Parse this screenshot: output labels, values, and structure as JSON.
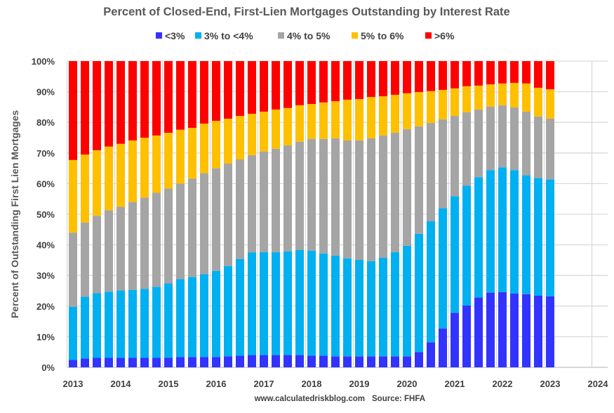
{
  "chart_data": {
    "type": "bar",
    "stacked": true,
    "title": "Percent of Closed-End, First-Lien Mortgages Outstanding by Interest Rate",
    "xlabel": "",
    "ylabel": "Percent of Outstanding First Lien Mortgages",
    "ylim": [
      0,
      100
    ],
    "yticks": [
      "0%",
      "10%",
      "20%",
      "30%",
      "40%",
      "50%",
      "60%",
      "70%",
      "80%",
      "90%",
      "100%"
    ],
    "xticks": [
      "2013",
      "2014",
      "2015",
      "2016",
      "2017",
      "2018",
      "2019",
      "2020",
      "2021",
      "2022",
      "2023",
      "2024"
    ],
    "grid": true,
    "legend": "top",
    "categories": [
      "2013-Q1",
      "2013-Q2",
      "2013-Q3",
      "2013-Q4",
      "2014-Q1",
      "2014-Q2",
      "2014-Q3",
      "2014-Q4",
      "2015-Q1",
      "2015-Q2",
      "2015-Q3",
      "2015-Q4",
      "2016-Q1",
      "2016-Q2",
      "2016-Q3",
      "2016-Q4",
      "2017-Q1",
      "2017-Q2",
      "2017-Q3",
      "2017-Q4",
      "2018-Q1",
      "2018-Q2",
      "2018-Q3",
      "2018-Q4",
      "2019-Q1",
      "2019-Q2",
      "2019-Q3",
      "2019-Q4",
      "2020-Q1",
      "2020-Q2",
      "2020-Q3",
      "2020-Q4",
      "2021-Q1",
      "2021-Q2",
      "2021-Q3",
      "2021-Q4",
      "2022-Q1",
      "2022-Q2",
      "2022-Q3",
      "2022-Q4",
      "2023-Q1"
    ],
    "series": [
      {
        "name": "<3%",
        "color": "#3333FF",
        "values": [
          2.4,
          2.9,
          3.1,
          3.1,
          3.1,
          3.1,
          3.1,
          3.1,
          3.1,
          3.4,
          3.4,
          3.4,
          3.4,
          3.6,
          3.8,
          4.0,
          4.0,
          4.0,
          4.0,
          4.0,
          3.8,
          3.8,
          3.6,
          3.6,
          3.6,
          3.6,
          3.6,
          3.6,
          3.6,
          5.0,
          8.2,
          12.7,
          17.8,
          20.2,
          22.8,
          24.4,
          24.6,
          24.1,
          23.9,
          23.4,
          23.2
        ]
      },
      {
        "name": "3% to <4%",
        "color": "#00B0F0",
        "values": [
          17.4,
          20.2,
          21.1,
          21.6,
          22.0,
          22.2,
          22.5,
          23.2,
          24.3,
          25.4,
          26.1,
          27.0,
          28.1,
          29.5,
          31.6,
          33.5,
          33.6,
          33.6,
          33.9,
          34.3,
          34.3,
          33.4,
          32.9,
          32.0,
          31.5,
          31.1,
          32.2,
          34.0,
          36.1,
          38.6,
          39.5,
          39.3,
          38.1,
          39.1,
          39.3,
          40.0,
          40.7,
          40.3,
          38.8,
          38.4,
          38.2
        ]
      },
      {
        "name": "4% to 5%",
        "color": "#A5A5A5",
        "values": [
          24.2,
          24.2,
          25.3,
          26.6,
          27.3,
          28.7,
          29.8,
          30.7,
          31.0,
          31.2,
          32.1,
          33.0,
          33.5,
          33.5,
          32.5,
          31.8,
          32.9,
          33.8,
          34.6,
          35.4,
          36.5,
          37.4,
          38.3,
          38.5,
          39.0,
          40.1,
          39.9,
          39.0,
          38.1,
          35.1,
          32.1,
          29.0,
          26.2,
          24.0,
          22.1,
          20.7,
          20.3,
          20.5,
          20.8,
          20.1,
          19.8
        ]
      },
      {
        "name": "5% to 6%",
        "color": "#FFC000",
        "values": [
          23.7,
          22.2,
          21.4,
          20.8,
          20.6,
          20.1,
          19.6,
          18.7,
          18.2,
          17.6,
          16.6,
          16.2,
          15.5,
          14.6,
          14.2,
          13.5,
          13.0,
          12.8,
          12.2,
          11.9,
          11.4,
          11.9,
          12.1,
          13.3,
          13.5,
          13.5,
          12.8,
          12.4,
          11.7,
          11.2,
          10.4,
          9.6,
          9.0,
          8.5,
          7.8,
          7.3,
          7.1,
          8.0,
          9.2,
          9.4,
          9.6
        ]
      },
      {
        "name": ">6%",
        "color": "#FF0000",
        "values": [
          32.3,
          30.5,
          29.1,
          27.9,
          27.0,
          25.9,
          25.0,
          24.3,
          23.4,
          22.4,
          21.8,
          20.4,
          19.5,
          18.8,
          17.9,
          17.2,
          16.5,
          15.8,
          15.3,
          14.4,
          14.0,
          13.5,
          13.1,
          12.6,
          12.4,
          11.7,
          11.5,
          11.0,
          10.5,
          10.1,
          9.8,
          9.4,
          8.9,
          8.2,
          8.0,
          7.6,
          7.3,
          7.1,
          7.3,
          8.7,
          9.2
        ]
      }
    ],
    "footer": {
      "site": "www.calculatedriskblog.com",
      "source": "Source: FHFA"
    }
  }
}
